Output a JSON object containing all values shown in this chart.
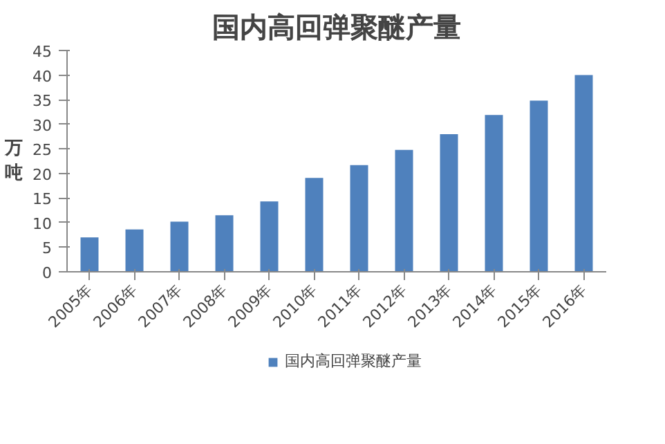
{
  "chart_data": {
    "type": "bar",
    "title": "国内高回弹聚醚产量",
    "ylabel": "万吨",
    "categories": [
      "2005年",
      "2006年",
      "2007年",
      "2008年",
      "2009年",
      "2010年",
      "2011年",
      "2012年",
      "2013年",
      "2014年",
      "2015年",
      "2016年"
    ],
    "series": [
      {
        "name": "国内高回弹聚醚产量",
        "color": "#4f81bd",
        "values": [
          7.0,
          8.6,
          10.2,
          11.5,
          14.3,
          19.1,
          21.7,
          24.8,
          28.0,
          31.9,
          34.8,
          40.0
        ]
      }
    ],
    "ylim": [
      0,
      45
    ],
    "yticks": [
      0,
      5,
      10,
      15,
      20,
      25,
      30,
      35,
      40,
      45
    ],
    "grid": false,
    "legend": "bottom"
  }
}
